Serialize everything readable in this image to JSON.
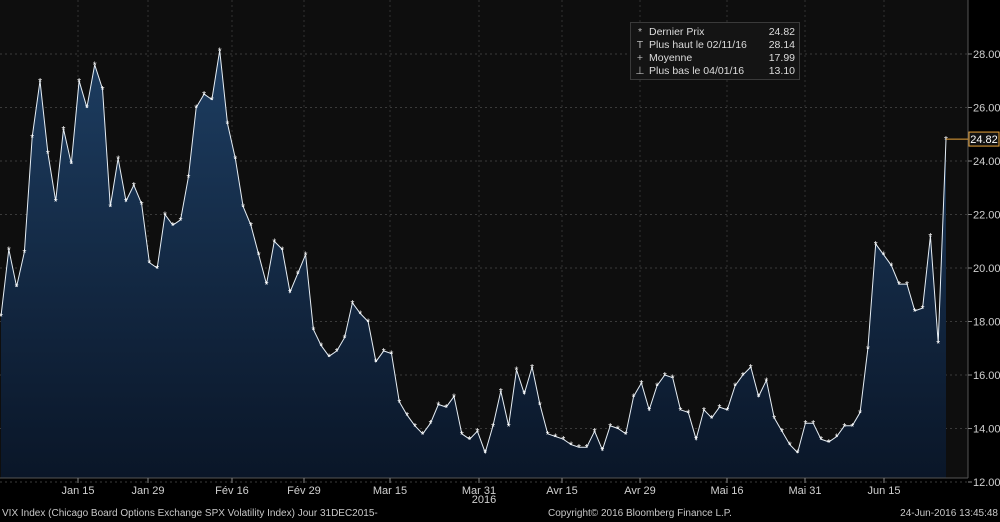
{
  "chart_data": {
    "type": "area",
    "ylim": [
      11.5,
      29.7
    ],
    "yticks": [
      "12.00",
      "14.00",
      "16.00",
      "18.00",
      "20.00",
      "22.00",
      "24.00",
      "26.00",
      "28.00"
    ],
    "ytick_values": [
      12,
      14,
      16,
      18,
      20,
      22,
      24,
      26,
      28
    ],
    "xtick_labels": [
      "Jan 15",
      "Jan 29",
      "Fév 16",
      "Fév 29",
      "Mar 15",
      "Mar 31",
      "Avr 15",
      "Avr 29",
      "Mai 16",
      "Mai 31",
      "Jun 15"
    ],
    "year_label": "2016",
    "series": [
      {
        "name": "Dernier Prix",
        "values": [
          18.2,
          20.7,
          19.3,
          20.6,
          24.9,
          27.0,
          24.3,
          22.5,
          25.2,
          23.9,
          27.0,
          26.0,
          27.6,
          26.7,
          22.3,
          24.1,
          22.5,
          23.1,
          22.4,
          20.2,
          20.0,
          22.0,
          21.6,
          21.8,
          23.4,
          26.0,
          26.5,
          26.3,
          28.14,
          25.4,
          24.1,
          22.3,
          21.6,
          20.5,
          19.4,
          21.0,
          20.7,
          19.1,
          19.8,
          20.5,
          17.7,
          17.1,
          16.7,
          16.9,
          17.4,
          18.7,
          18.3,
          18.0,
          16.5,
          16.9,
          16.8,
          15.0,
          14.5,
          14.1,
          13.8,
          14.2,
          14.9,
          14.8,
          15.2,
          13.8,
          13.6,
          13.9,
          13.1,
          14.1,
          15.4,
          14.1,
          16.2,
          15.3,
          16.3,
          14.9,
          13.8,
          13.7,
          13.6,
          13.4,
          13.3,
          13.3,
          13.9,
          13.2,
          14.1,
          14.0,
          13.8,
          15.2,
          15.7,
          14.7,
          15.6,
          16.0,
          15.9,
          14.7,
          14.6,
          13.6,
          14.7,
          14.4,
          14.8,
          14.7,
          15.6,
          16.0,
          16.3,
          15.2,
          15.8,
          14.4,
          13.9,
          13.4,
          13.1,
          14.2,
          14.2,
          13.6,
          13.5,
          13.7,
          14.1,
          14.1,
          14.6,
          17.0,
          20.9,
          20.5,
          20.1,
          19.4,
          19.4,
          18.4,
          18.5,
          21.2,
          17.2,
          24.82
        ]
      }
    ],
    "last_value_label": "24.82",
    "colors": {
      "fill_top": "#1c3a5c",
      "fill_bottom": "#0a1626",
      "line": "#e6eef5",
      "background": "#000000",
      "plot_bg": "#0f0f0f"
    },
    "legend_placement": "top-right"
  },
  "legend": {
    "rows": [
      {
        "symbol": "*",
        "label": "Dernier Prix",
        "value": "24.82"
      },
      {
        "symbol": "T",
        "label": "Plus haut le 02/11/16",
        "value": "28.14"
      },
      {
        "symbol": "+",
        "label": "Moyenne",
        "value": "17.99"
      },
      {
        "symbol": "⊥",
        "label": "Plus bas le 04/01/16",
        "value": "13.10"
      }
    ]
  },
  "footer": {
    "left": "VIX Index (Chicago Board Options Exchange SPX Volatility Index)  Jour 31DEC2015-",
    "center": "Copyright© 2016 Bloomberg Finance L.P.",
    "right": "24-Jun-2016 13:45:48"
  }
}
